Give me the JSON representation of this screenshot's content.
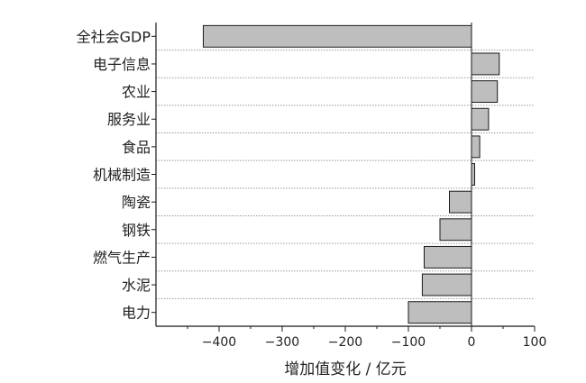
{
  "chart_data": {
    "type": "bar",
    "orientation": "horizontal",
    "categories": [
      "全社会GDP",
      "电子信息",
      "农业",
      "服务业",
      "食品",
      "机械制造",
      "陶瓷",
      "钢铁",
      "燃气生产",
      "水泥",
      "电力"
    ],
    "values": [
      -425,
      44,
      41,
      27,
      13,
      5,
      -35,
      -50,
      -75,
      -78,
      -100
    ],
    "xlabel": "增加值变化 / 亿元",
    "ylabel": "",
    "xlim": [
      -500,
      100
    ],
    "xticks": [
      -400,
      -300,
      -200,
      -100,
      0,
      100
    ],
    "grid": "dotted horizontal separators",
    "bar_color": "#bebebe",
    "bar_edge_color": "#1a1a1a"
  }
}
